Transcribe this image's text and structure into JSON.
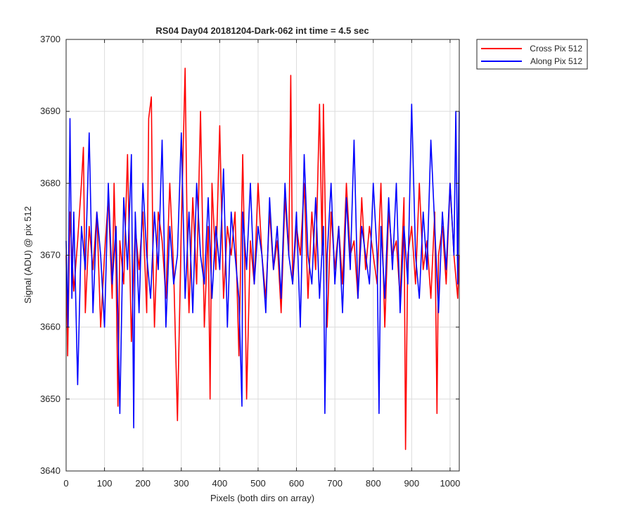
{
  "chart_data": {
    "type": "line",
    "title": "RS04 Day04 20181204-Dark-062 int time = 4.5 sec",
    "xlabel": "Pixels (both dirs on array)",
    "ylabel": "Signal (ADU) @ pix 512",
    "xlim": [
      0,
      1024
    ],
    "ylim": [
      3640,
      3700
    ],
    "xticks": [
      0,
      100,
      200,
      300,
      400,
      500,
      600,
      700,
      800,
      900,
      1000
    ],
    "yticks": [
      3640,
      3650,
      3660,
      3670,
      3680,
      3690,
      3700
    ],
    "grid": true,
    "legend_position": "outside-top-right",
    "series": [
      {
        "name": "Cross Pix 512",
        "color": "#ff0000",
        "x": [
          0,
          4,
          10,
          20,
          30,
          40,
          45,
          50,
          60,
          70,
          80,
          90,
          100,
          110,
          120,
          125,
          130,
          135,
          140,
          150,
          160,
          170,
          180,
          190,
          200,
          210,
          215,
          222,
          226,
          230,
          240,
          250,
          260,
          270,
          280,
          290,
          300,
          310,
          316,
          320,
          330,
          340,
          350,
          360,
          370,
          375,
          380,
          390,
          400,
          410,
          420,
          430,
          440,
          450,
          460,
          465,
          470,
          480,
          490,
          500,
          510,
          520,
          530,
          540,
          550,
          560,
          570,
          580,
          585,
          590,
          600,
          610,
          620,
          630,
          640,
          650,
          660,
          667,
          670,
          680,
          690,
          700,
          710,
          720,
          730,
          740,
          750,
          760,
          770,
          780,
          790,
          800,
          810,
          820,
          830,
          840,
          850,
          860,
          870,
          880,
          884,
          890,
          900,
          910,
          920,
          930,
          940,
          950,
          960,
          966,
          970,
          980,
          990,
          1000,
          1010,
          1020,
          1024
        ],
        "y": [
          3670,
          3656,
          3676,
          3665,
          3672,
          3680,
          3685,
          3662,
          3674,
          3668,
          3676,
          3660,
          3670,
          3678,
          3664,
          3680,
          3668,
          3649,
          3672,
          3666,
          3684,
          3658,
          3674,
          3668,
          3676,
          3662,
          3689,
          3692,
          3670,
          3660,
          3676,
          3672,
          3664,
          3680,
          3668,
          3647,
          3674,
          3696,
          3670,
          3662,
          3678,
          3666,
          3690,
          3660,
          3674,
          3650,
          3680,
          3668,
          3688,
          3664,
          3674,
          3670,
          3676,
          3656,
          3684,
          3670,
          3650,
          3672,
          3666,
          3680,
          3670,
          3664,
          3676,
          3668,
          3672,
          3662,
          3678,
          3670,
          3695,
          3666,
          3674,
          3670,
          3680,
          3664,
          3676,
          3668,
          3691,
          3670,
          3691,
          3660,
          3676,
          3668,
          3674,
          3666,
          3680,
          3670,
          3672,
          3664,
          3678,
          3668,
          3674,
          3670,
          3666,
          3680,
          3660,
          3676,
          3670,
          3672,
          3664,
          3678,
          3643,
          3670,
          3674,
          3666,
          3680,
          3668,
          3672,
          3664,
          3676,
          3648,
          3670,
          3674,
          3666,
          3680,
          3670,
          3664,
          3670
        ]
      },
      {
        "name": "Along Pix 512",
        "color": "#0000ff",
        "x": [
          0,
          5,
          10,
          15,
          20,
          30,
          40,
          50,
          60,
          70,
          80,
          90,
          100,
          110,
          120,
          130,
          140,
          150,
          160,
          170,
          176,
          180,
          190,
          200,
          210,
          220,
          230,
          240,
          250,
          260,
          270,
          280,
          290,
          300,
          310,
          320,
          330,
          340,
          350,
          360,
          370,
          380,
          390,
          400,
          410,
          420,
          430,
          440,
          450,
          458,
          460,
          470,
          480,
          490,
          500,
          510,
          520,
          530,
          540,
          550,
          560,
          570,
          580,
          590,
          600,
          610,
          620,
          630,
          640,
          650,
          660,
          670,
          674,
          680,
          690,
          700,
          710,
          720,
          730,
          740,
          750,
          760,
          770,
          780,
          790,
          800,
          810,
          815,
          820,
          830,
          840,
          850,
          860,
          870,
          880,
          890,
          900,
          910,
          920,
          930,
          940,
          950,
          960,
          970,
          980,
          990,
          1000,
          1010,
          1015,
          1020,
          1024
        ],
        "y": [
          3672,
          3660,
          3689,
          3664,
          3676,
          3652,
          3674,
          3668,
          3687,
          3662,
          3676,
          3670,
          3660,
          3680,
          3666,
          3674,
          3648,
          3678,
          3668,
          3684,
          3646,
          3676,
          3662,
          3680,
          3670,
          3664,
          3676,
          3668,
          3686,
          3660,
          3674,
          3666,
          3670,
          3687,
          3664,
          3676,
          3662,
          3680,
          3670,
          3666,
          3678,
          3664,
          3674,
          3668,
          3682,
          3660,
          3676,
          3670,
          3664,
          3649,
          3676,
          3668,
          3680,
          3666,
          3674,
          3670,
          3662,
          3678,
          3668,
          3674,
          3664,
          3680,
          3670,
          3666,
          3676,
          3660,
          3684,
          3670,
          3666,
          3678,
          3664,
          3674,
          3648,
          3670,
          3680,
          3666,
          3674,
          3662,
          3678,
          3668,
          3686,
          3664,
          3674,
          3670,
          3666,
          3680,
          3670,
          3648,
          3674,
          3664,
          3678,
          3668,
          3680,
          3662,
          3674,
          3666,
          3691,
          3670,
          3664,
          3676,
          3668,
          3686,
          3674,
          3662,
          3676,
          3668,
          3680,
          3670,
          3690,
          3666,
          3690
        ]
      }
    ]
  }
}
